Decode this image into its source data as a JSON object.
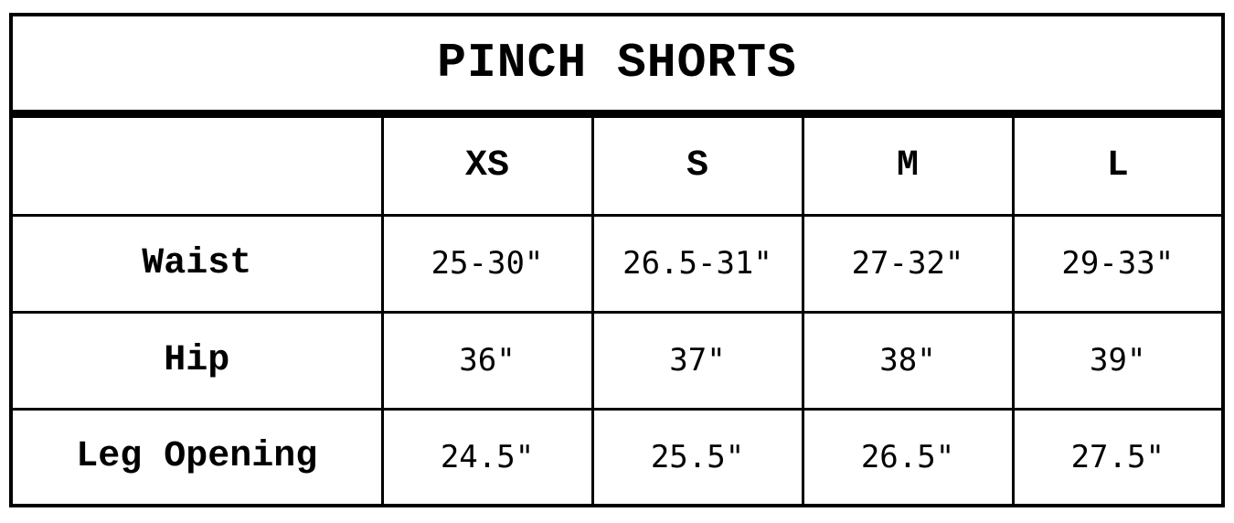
{
  "title": "PINCH SHORTS",
  "table": {
    "corner_label": "",
    "columns": [
      "XS",
      "S",
      "M",
      "L"
    ],
    "rows": [
      {
        "label": "Waist",
        "values": [
          "25-30\"",
          "26.5-31\"",
          "27-32\"",
          "29-33\""
        ]
      },
      {
        "label": "Hip",
        "values": [
          "36\"",
          "37\"",
          "38\"",
          "39\""
        ]
      },
      {
        "label": "Leg Opening",
        "values": [
          "24.5\"",
          "25.5\"",
          "26.5\"",
          "27.5\""
        ]
      }
    ]
  },
  "colors": {
    "text": "#000000",
    "border": "#000000",
    "background": "#ffffff"
  },
  "chart_data": {
    "type": "table",
    "title": "PINCH SHORTS",
    "columns": [
      "",
      "XS",
      "S",
      "M",
      "L"
    ],
    "rows": [
      [
        "Waist",
        "25-30\"",
        "26.5-31\"",
        "27-32\"",
        "29-33\""
      ],
      [
        "Hip",
        "36\"",
        "37\"",
        "38\"",
        "39\""
      ],
      [
        "Leg Opening",
        "24.5\"",
        "25.5\"",
        "26.5\"",
        "27.5\""
      ]
    ]
  }
}
